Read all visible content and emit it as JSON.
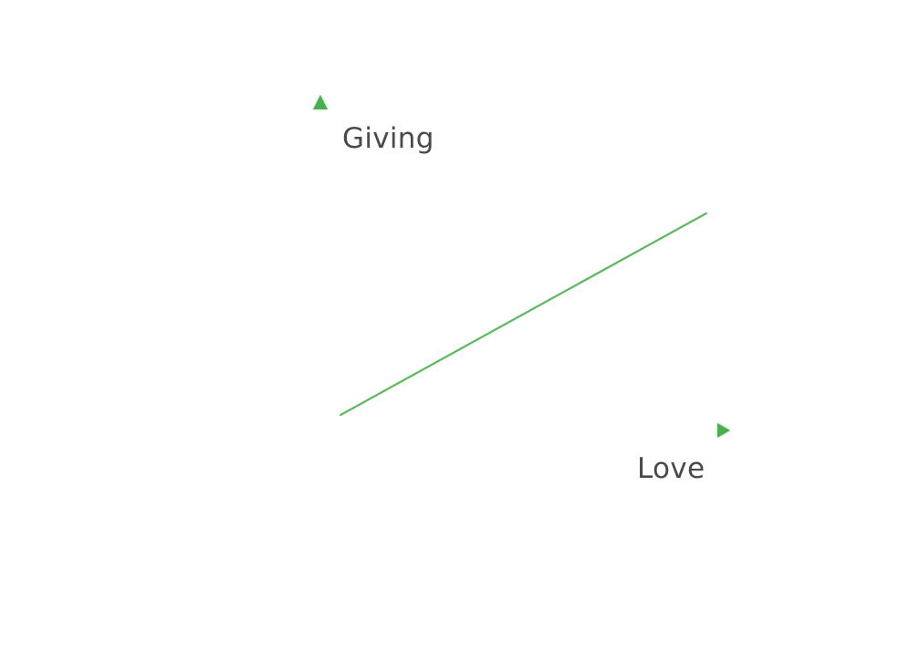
{
  "chart_data": {
    "type": "line",
    "xlabel": "Love",
    "ylabel": "Giving",
    "grid": false,
    "legend": "none",
    "ticks": false,
    "series": [
      {
        "x": [
          0.05,
          0.95
        ],
        "y": [
          0.05,
          0.7
        ]
      }
    ],
    "axis_color": "#4caf50",
    "line_color": "#5cb85c",
    "label_color": "#4a4a4a"
  }
}
